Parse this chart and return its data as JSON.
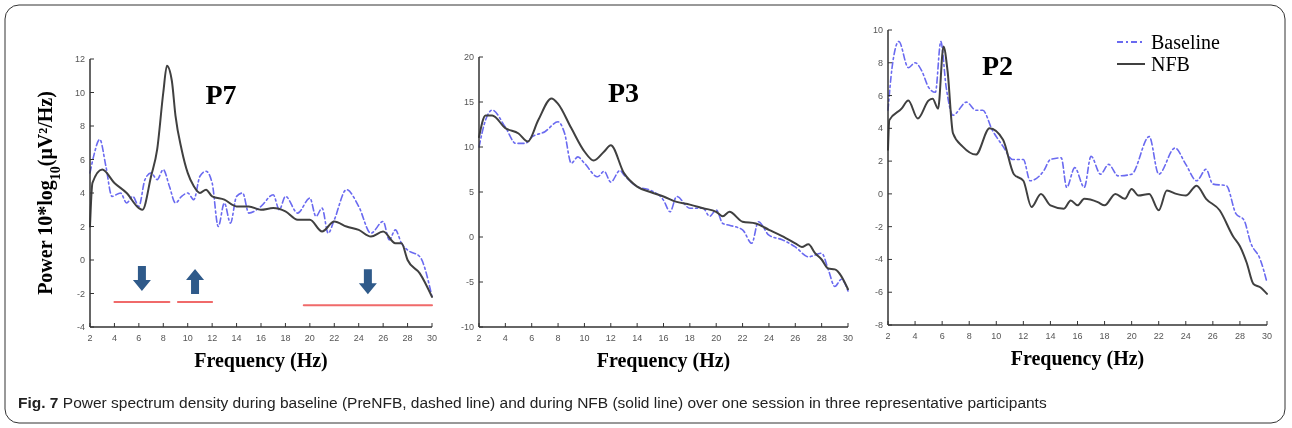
{
  "chart_data": [
    {
      "type": "line",
      "title": "P7",
      "xlabel": "Frequency (Hz)",
      "ylabel": "Power 10*log$_{10}$(μV²/Hz)",
      "xlim": [
        2,
        30
      ],
      "xticks": [
        2,
        4,
        6,
        8,
        10,
        12,
        14,
        16,
        18,
        20,
        22,
        24,
        26,
        28,
        30
      ],
      "ylim": [
        -4,
        12
      ],
      "yticks": [
        -4,
        -2,
        0,
        2,
        4,
        6,
        8,
        10,
        12
      ],
      "grid": false,
      "legend": false,
      "annotations": [
        "Fig. 7 Power spectrum density during baseline (PreNFB, dashed line) and during NFB (solid line) over one session in three representative participants"
      ],
      "series": [
        {
          "color": "#6a6af0",
          "line_style": "dashed",
          "x": [
            2,
            2.3,
            2.8,
            3.3,
            3.8,
            4.5,
            5,
            5.5,
            6,
            6.5,
            7,
            7.5,
            8,
            8.5,
            9,
            9.5,
            10,
            10.5,
            11,
            11.5,
            12,
            12.5,
            13,
            13.5,
            14,
            14.5,
            15,
            16,
            17,
            17.5,
            18,
            19,
            20,
            20.5,
            21,
            21.5,
            22,
            23,
            24,
            25,
            26,
            26.5,
            27,
            27.5,
            28,
            29,
            30
          ],
          "values": [
            5.2,
            6.2,
            7.2,
            5.6,
            3.8,
            4.0,
            3.4,
            3.8,
            3.2,
            4.8,
            5.2,
            4.8,
            5.4,
            4.4,
            3.4,
            3.8,
            4.0,
            3.6,
            5.0,
            5.3,
            4.6,
            2.0,
            3.4,
            2.2,
            3.8,
            4.0,
            2.8,
            3.2,
            3.9,
            3.0,
            3.8,
            2.8,
            3.7,
            2.6,
            3.1,
            1.6,
            2.4,
            4.2,
            3.2,
            1.6,
            2.3,
            1.2,
            1.8,
            1.0,
            0.6,
            0.2,
            -2.2
          ]
        },
        {
          "color": "#404040",
          "line_style": "solid",
          "x": [
            2,
            2.2,
            3,
            4,
            5,
            6,
            6.3,
            7,
            7.5,
            8,
            8.3,
            8.7,
            9,
            9.5,
            10,
            10.5,
            11,
            11.5,
            12,
            13,
            14,
            15,
            16,
            17,
            18,
            19,
            20,
            21,
            22,
            23,
            24,
            25,
            26,
            27,
            27.5,
            28,
            29,
            30
          ],
          "values": [
            2.0,
            4.6,
            5.4,
            4.6,
            4.0,
            3.1,
            3.0,
            5.0,
            6.6,
            10.0,
            11.6,
            10.7,
            8.6,
            6.6,
            5.2,
            4.4,
            4.0,
            4.2,
            3.8,
            3.6,
            3.2,
            3.2,
            3.0,
            3.1,
            2.9,
            2.4,
            2.4,
            1.7,
            2.3,
            2.0,
            1.8,
            1.4,
            1.7,
            1.0,
            1.0,
            0.0,
            -0.8,
            -2.2
          ]
        },
        {
          "color": "#f06a6a",
          "line_style": "solid",
          "x": [
            4,
            8.5
          ],
          "values": [
            -2.5,
            -2.5
          ]
        },
        {
          "color": "#f06a6a",
          "line_style": "solid",
          "x": [
            9.2,
            12
          ],
          "values": [
            -2.5,
            -2.5
          ]
        },
        {
          "color": "#f06a6a",
          "line_style": "solid",
          "x": [
            19.5,
            30
          ],
          "values": [
            -2.7,
            -2.7
          ]
        }
      ]
    },
    {
      "type": "line",
      "title": "P3",
      "xlabel": "Frequency (Hz)",
      "xlim": [
        2,
        30
      ],
      "xticks": [
        2,
        4,
        6,
        8,
        10,
        12,
        14,
        16,
        18,
        20,
        22,
        24,
        26,
        28,
        30
      ],
      "ylim": [
        -10,
        20
      ],
      "yticks": [
        -10,
        -5,
        0,
        5,
        10,
        15,
        20
      ],
      "grid": false,
      "legend": false,
      "series": [
        {
          "color": "#6a6af0",
          "line_style": "dashed",
          "x": [
            2,
            2.5,
            3,
            4,
            4.8,
            5.5,
            6,
            7,
            8,
            8.5,
            9,
            9.5,
            10,
            11,
            11.5,
            12,
            12.7,
            13,
            14,
            15,
            16,
            16.5,
            17,
            18,
            19,
            19.5,
            20,
            20.5,
            21,
            22,
            22.7,
            23.2,
            24,
            25,
            26,
            27,
            28,
            28.5,
            29,
            29.5,
            30
          ],
          "values": [
            10.0,
            13.0,
            14.1,
            12.2,
            10.4,
            10.4,
            11.1,
            11.7,
            12.8,
            11.5,
            8.2,
            8.9,
            8.2,
            6.7,
            7.3,
            6.1,
            7.4,
            6.9,
            5.6,
            5.2,
            4.1,
            2.8,
            4.5,
            3.2,
            3.2,
            2.3,
            3.0,
            1.5,
            1.3,
            0.8,
            -0.7,
            1.7,
            0.2,
            -0.3,
            -1.1,
            -2.2,
            -1.8,
            -3.6,
            -5.5,
            -4.7,
            -6.0
          ]
        },
        {
          "color": "#404040",
          "line_style": "solid",
          "x": [
            2,
            2.5,
            3,
            4,
            5,
            5.7,
            6.5,
            7.5,
            8,
            9,
            10,
            10.7,
            11.5,
            12,
            13,
            14,
            15,
            16,
            17,
            18,
            19,
            20,
            20.5,
            21,
            22,
            23,
            24,
            25,
            26,
            26.5,
            27,
            27.5,
            28,
            28.5,
            29,
            30
          ],
          "values": [
            11.1,
            13.5,
            13.5,
            12.1,
            11.5,
            10.6,
            13.0,
            15.4,
            14.8,
            12.1,
            9.5,
            8.5,
            9.5,
            10.2,
            7.1,
            5.6,
            5.0,
            4.5,
            3.9,
            3.6,
            3.2,
            2.8,
            2.3,
            2.8,
            1.7,
            1.5,
            0.8,
            0.1,
            -0.7,
            -1.1,
            -0.8,
            -1.8,
            -2.5,
            -3.5,
            -3.6,
            -5.8
          ]
        }
      ]
    },
    {
      "type": "line",
      "title": "P2",
      "xlabel": "Frequency (Hz)",
      "xlim": [
        2,
        30
      ],
      "xticks": [
        2,
        4,
        6,
        8,
        10,
        12,
        14,
        16,
        18,
        20,
        22,
        24,
        26,
        28,
        30
      ],
      "ylim": [
        -8,
        10
      ],
      "yticks": [
        -8,
        -6,
        -4,
        -2,
        0,
        2,
        4,
        6,
        8,
        10
      ],
      "grid": false,
      "legend": "top right",
      "series": [
        {
          "name": "Baseline",
          "color": "#6a6af0",
          "line_style": "dashed",
          "x": [
            2,
            2.3,
            2.8,
            3.5,
            4,
            4.5,
            5,
            5.5,
            5.9,
            6.3,
            6.8,
            7.8,
            8.5,
            9,
            9.7,
            10.5,
            11.2,
            12,
            12.5,
            13.5,
            14,
            14.8,
            15.2,
            15.8,
            16.5,
            17,
            17.7,
            18.3,
            19,
            20,
            21.3,
            22,
            23.2,
            24,
            24.8,
            25.5,
            26,
            27,
            27.7,
            28.3,
            28.8,
            29.5,
            30
          ],
          "values": [
            5.1,
            7.7,
            9.3,
            7.7,
            8.0,
            7.5,
            6.5,
            6.2,
            9.3,
            6.5,
            4.8,
            5.6,
            5.1,
            5.1,
            3.9,
            2.9,
            2.1,
            2.1,
            0.8,
            1.4,
            2.1,
            2.2,
            0.4,
            1.6,
            0.4,
            2.3,
            1.2,
            1.8,
            1.1,
            1.2,
            3.5,
            1.2,
            2.8,
            1.8,
            0.8,
            1.5,
            0.6,
            0.5,
            -1.2,
            -1.6,
            -3.0,
            -4.0,
            -5.4
          ]
        },
        {
          "name": "NFB",
          "color": "#404040",
          "line_style": "solid",
          "x": [
            2,
            2.1,
            3,
            3.5,
            4.2,
            5,
            5.3,
            5.7,
            6.1,
            6.4,
            6.8,
            7.5,
            8.5,
            9.5,
            10.5,
            11.3,
            12,
            12.6,
            13.3,
            14,
            15,
            15.5,
            16,
            16.5,
            17.5,
            18,
            18.8,
            19.5,
            20,
            20.5,
            21.3,
            22,
            22.6,
            23.3,
            24,
            24.8,
            25.5,
            26.5,
            27.5,
            28,
            28.5,
            29,
            29.5,
            30
          ],
          "values": [
            2.7,
            4.5,
            5.2,
            5.7,
            4.6,
            5.7,
            5.8,
            5.2,
            9.0,
            7.5,
            3.7,
            2.9,
            2.4,
            4.0,
            3.3,
            1.2,
            0.8,
            -0.8,
            0.0,
            -0.7,
            -0.9,
            -0.4,
            -0.7,
            -0.3,
            -0.5,
            -0.7,
            0.0,
            -0.3,
            0.3,
            -0.1,
            0.0,
            -1.0,
            0.2,
            0.0,
            -0.1,
            0.5,
            -0.3,
            -1.0,
            -2.6,
            -3.2,
            -4.2,
            -5.5,
            -5.7,
            -6.1
          ]
        }
      ]
    }
  ]
}
